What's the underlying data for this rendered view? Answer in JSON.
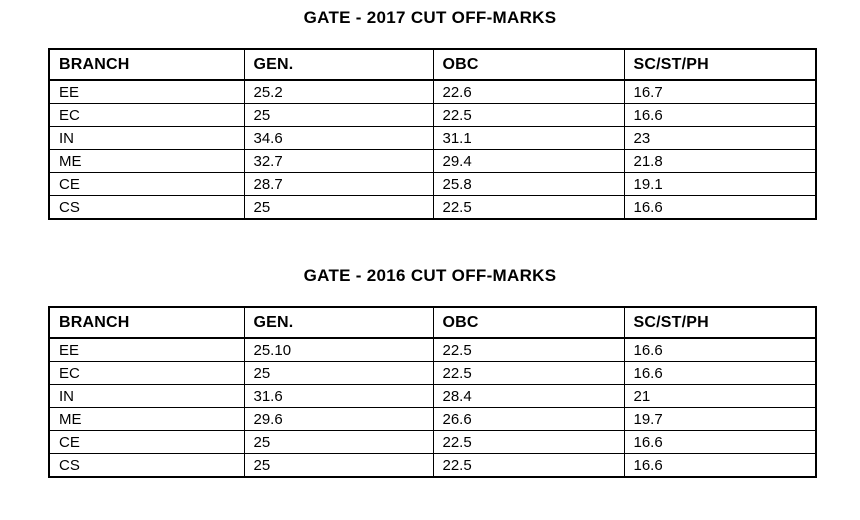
{
  "page": {
    "background_color": "#ffffff",
    "text_color": "#000000"
  },
  "tables": [
    {
      "title": "GATE - 2017 CUT OFF-MARKS",
      "columns": [
        "BRANCH",
        "GEN.",
        "OBC",
        "SC/ST/PH"
      ],
      "rows": [
        [
          "EE",
          "25.2",
          "22.6",
          "16.7"
        ],
        [
          "EC",
          "25",
          "22.5",
          "16.6"
        ],
        [
          "IN",
          "34.6",
          "31.1",
          "23"
        ],
        [
          "ME",
          "32.7",
          "29.4",
          "21.8"
        ],
        [
          "CE",
          "28.7",
          "25.8",
          "19.1"
        ],
        [
          "CS",
          "25",
          "22.5",
          "16.6"
        ]
      ]
    },
    {
      "title": "GATE - 2016 CUT OFF-MARKS",
      "columns": [
        "BRANCH",
        "GEN.",
        "OBC",
        "SC/ST/PH"
      ],
      "rows": [
        [
          "EE",
          "25.10",
          "22.5",
          "16.6"
        ],
        [
          "EC",
          "25",
          "22.5",
          "16.6"
        ],
        [
          "IN",
          "31.6",
          "28.4",
          "21"
        ],
        [
          "ME",
          "29.6",
          "26.6",
          "19.7"
        ],
        [
          "CE",
          "25",
          "22.5",
          "16.6"
        ],
        [
          "CS",
          "25",
          "22.5",
          "16.6"
        ]
      ]
    }
  ]
}
